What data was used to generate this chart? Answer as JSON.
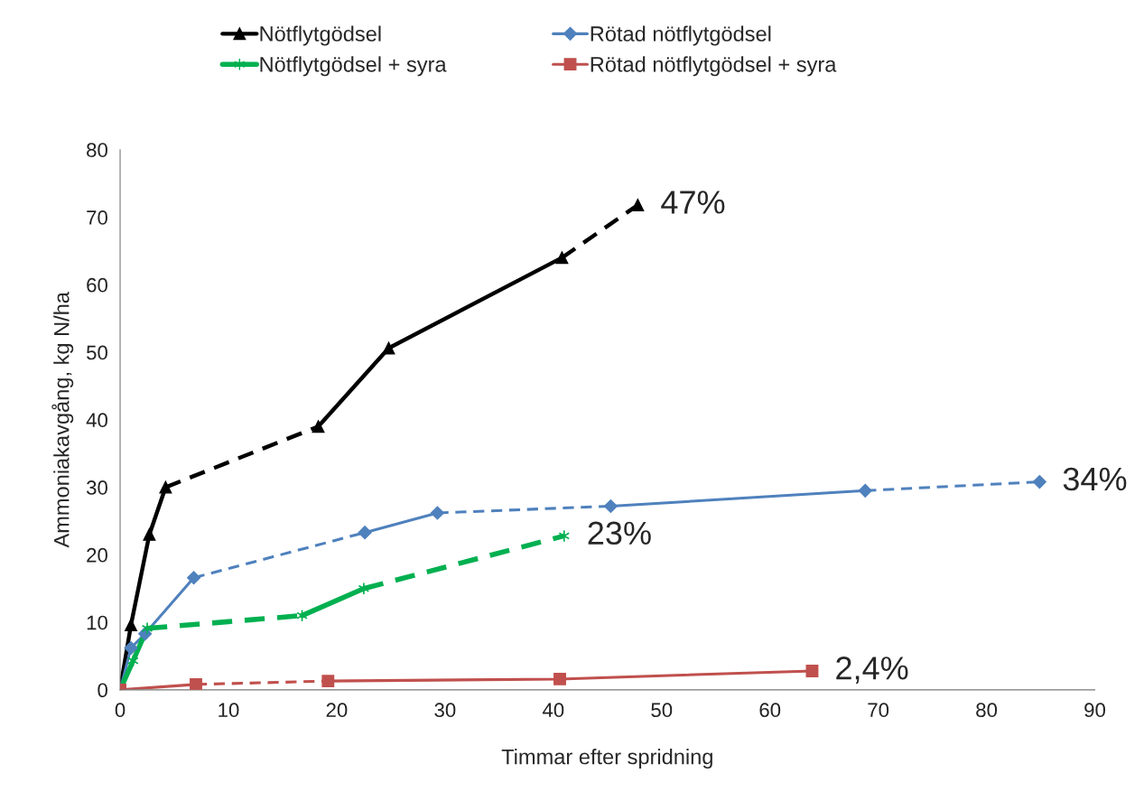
{
  "chart_data": {
    "type": "line",
    "xlabel": "Timmar efter spridning",
    "ylabel": "Ammoniakavgång, kg N/ha",
    "xlim": [
      0,
      90
    ],
    "xticks": [
      0,
      10,
      20,
      30,
      40,
      50,
      60,
      70,
      80,
      90
    ],
    "ylim": [
      0,
      80
    ],
    "yticks": [
      0,
      10,
      20,
      30,
      40,
      50,
      60,
      70,
      80
    ],
    "grid": false,
    "legend": "top",
    "series": [
      {
        "name": "Nötflytgödsel",
        "color": "#000000",
        "marker": "triangle",
        "x": [
          0,
          1,
          2.7,
          4.2,
          18.3,
          24.8,
          40.8,
          47.8
        ],
        "values": [
          0,
          9.6,
          23,
          30,
          39,
          50.6,
          64,
          71.8
        ],
        "line_style": [
          "solid",
          "solid",
          "solid",
          "dashed",
          "solid",
          "solid",
          "dashed"
        ]
      },
      {
        "name": "Rötad nötflytgödsel",
        "color": "#4f81bd",
        "marker": "diamond",
        "x": [
          0,
          1,
          2.3,
          6.8,
          22.6,
          29.3,
          45.3,
          68.8,
          84.9
        ],
        "values": [
          0,
          6.2,
          8.3,
          16.6,
          23.3,
          26.2,
          27.2,
          29.5,
          30.8
        ],
        "line_style": [
          "solid",
          "solid",
          "solid",
          "dashed",
          "solid",
          "dashed",
          "solid",
          "dashed"
        ]
      },
      {
        "name": "Nötflytgödsel + syra",
        "color": "#00b050",
        "marker": "cross",
        "x": [
          0,
          1.2,
          2.5,
          16.8,
          22.5,
          41
        ],
        "values": [
          0,
          4.3,
          9.1,
          11,
          15,
          22.8
        ],
        "line_style": [
          "solid",
          "solid",
          "dashed",
          "solid",
          "dashed"
        ]
      },
      {
        "name": "Rötad nötflytgödsel + syra",
        "color": "#c0504d",
        "marker": "square",
        "x": [
          0,
          7,
          19.2,
          40.6,
          63.9
        ],
        "values": [
          0,
          0.8,
          1.3,
          1.6,
          2.8
        ],
        "line_style": [
          "solid",
          "dashed",
          "solid",
          "solid"
        ]
      }
    ],
    "annotations": [
      {
        "text": "47%",
        "x": 47.8,
        "y": 71.8
      },
      {
        "text": "34%",
        "x": 84.9,
        "y": 30.8
      },
      {
        "text": "23%",
        "x": 41,
        "y": 22.8
      },
      {
        "text": "2,4%",
        "x": 63.9,
        "y": 2.8
      }
    ]
  }
}
